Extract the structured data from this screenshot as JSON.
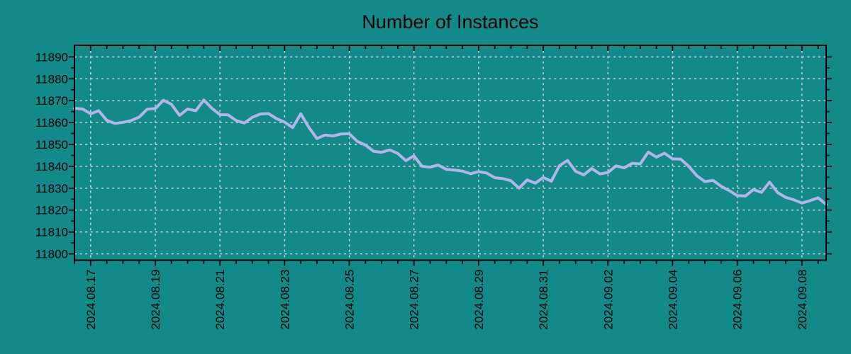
{
  "colors": {
    "background": "#138a8a",
    "grid": "#d9d9d9",
    "axis": "#000000",
    "text": "#000000",
    "line": "#b4b4ea"
  },
  "chart_data": {
    "type": "line",
    "title": "Number of Instances",
    "xlabel": "",
    "ylabel": "",
    "grid": true,
    "legend": "none",
    "x_axis": {
      "tick_labels": [
        "2024.08.17",
        "2024.08.19",
        "2024.08.21",
        "2024.08.23",
        "2024.08.25",
        "2024.08.27",
        "2024.08.29",
        "2024.08.31",
        "2024.09.02",
        "2024.09.04",
        "2024.09.06",
        "2024.09.08"
      ],
      "first_tick_point_index": 2,
      "points_per_major_tick": 8,
      "points_per_minor_tick": 2,
      "points_per_day": 4
    },
    "y_axis": {
      "tick_values": [
        11800,
        11810,
        11820,
        11830,
        11840,
        11850,
        11860,
        11870,
        11880,
        11890
      ],
      "minor_tick_step": 5,
      "ylim": [
        11797.1,
        11895.3
      ]
    },
    "series": [
      {
        "name": "instances",
        "color": "#b4b4ea",
        "values": [
          11866.5,
          11866.2,
          11864.0,
          11865.4,
          11861.0,
          11859.6,
          11860.1,
          11860.9,
          11862.5,
          11866.1,
          11866.4,
          11870.2,
          11868.3,
          11863.3,
          11866.2,
          11865.4,
          11870.3,
          11866.5,
          11863.6,
          11863.5,
          11860.9,
          11859.8,
          11862.4,
          11863.9,
          11864.1,
          11861.8,
          11860.2,
          11857.7,
          11864.0,
          11857.8,
          11852.7,
          11854.3,
          11853.9,
          11854.8,
          11854.9,
          11851.4,
          11849.7,
          11846.9,
          11846.4,
          11847.5,
          11845.9,
          11842.6,
          11844.8,
          11840.0,
          11839.6,
          11840.6,
          11838.6,
          11838.3,
          11837.8,
          11836.6,
          11837.6,
          11836.9,
          11834.8,
          11834.4,
          11833.4,
          11830.0,
          11833.8,
          11832.3,
          11834.9,
          11833.2,
          11840.3,
          11842.7,
          11837.7,
          11836.1,
          11839.0,
          11836.5,
          11837.2,
          11840.2,
          11839.3,
          11841.4,
          11841.1,
          11846.5,
          11844.2,
          11846.0,
          11843.4,
          11843.3,
          11840.0,
          11835.7,
          11833.0,
          11833.6,
          11830.9,
          11828.9,
          11826.6,
          11826.4,
          11829.4,
          11828.1,
          11832.8,
          11828.0,
          11825.8,
          11824.7,
          11823.2,
          11824.3,
          11825.6,
          11822.6
        ]
      }
    ]
  }
}
